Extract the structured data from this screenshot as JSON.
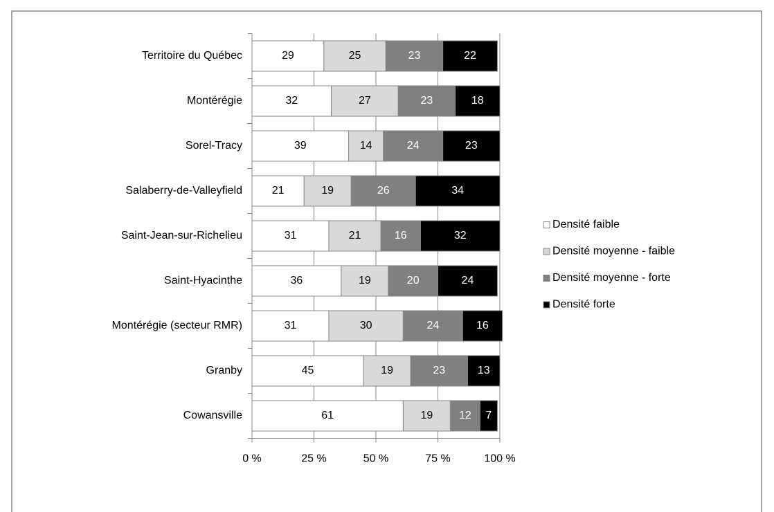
{
  "chart_data": {
    "type": "bar",
    "orientation": "horizontal",
    "stacked": true,
    "categories": [
      "Territoire du Québec",
      "Montérégie",
      "Sorel-Tracy",
      "Salaberry-de-Valleyfield",
      "Saint-Jean-sur-Richelieu",
      "Saint-Hyacinthe",
      "Montérégie (secteur RMR)",
      "Granby",
      "Cowansville"
    ],
    "series": [
      {
        "name": "Densité faible",
        "color": "#ffffff",
        "values": [
          29,
          32,
          39,
          21,
          31,
          36,
          31,
          45,
          61
        ]
      },
      {
        "name": "Densité moyenne - faible",
        "color": "#d9d9d9",
        "values": [
          25,
          27,
          14,
          19,
          21,
          19,
          30,
          19,
          19
        ]
      },
      {
        "name": "Densité moyenne - forte",
        "color": "#808080",
        "values": [
          23,
          23,
          24,
          26,
          16,
          20,
          24,
          23,
          12
        ]
      },
      {
        "name": "Densité forte",
        "color": "#000000",
        "values": [
          22,
          18,
          23,
          34,
          32,
          24,
          16,
          13,
          7
        ]
      }
    ],
    "xlim": [
      0,
      100
    ],
    "xticks": [
      {
        "value": 0,
        "label": "0 %"
      },
      {
        "value": 25,
        "label": "25 %"
      },
      {
        "value": 50,
        "label": "50 %"
      },
      {
        "value": 75,
        "label": "75 %"
      },
      {
        "value": 100,
        "label": "100 %"
      }
    ],
    "grid": true,
    "legend": "right"
  }
}
